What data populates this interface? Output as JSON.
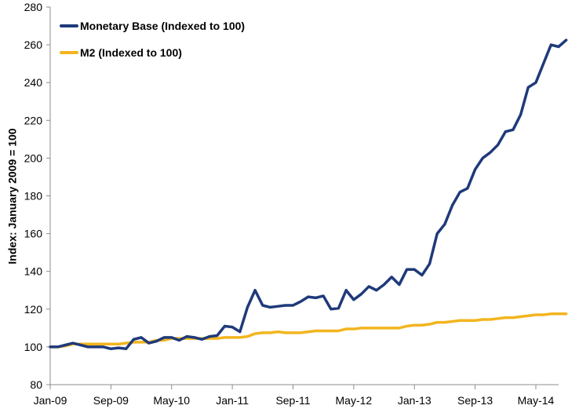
{
  "chart_data": {
    "type": "line",
    "title": "",
    "xlabel": "",
    "ylabel": "Index: January 2009 = 100",
    "ylim": [
      80,
      280
    ],
    "yticks": [
      80,
      100,
      120,
      140,
      160,
      180,
      200,
      220,
      240,
      260,
      280
    ],
    "grid": false,
    "legend": "top-left",
    "x_tick_labels": [
      "Jan-09",
      "Sep-09",
      "May-10",
      "Jan-11",
      "Sep-11",
      "May-12",
      "Jan-13",
      "Sep-13",
      "May-14"
    ],
    "x_tick_months": [
      "2009-01",
      "2009-09",
      "2010-05",
      "2011-01",
      "2011-09",
      "2012-05",
      "2013-01",
      "2013-09",
      "2014-05"
    ],
    "x_start": "2009-01",
    "x_end": "2014-08",
    "series": [
      {
        "name": "Monetary Base (Indexed to 100)",
        "color": "#1f3a7a",
        "start": "2009-01",
        "values": [
          100,
          100,
          101,
          102,
          101,
          100,
          100,
          100,
          99,
          99.5,
          99,
          104,
          105,
          102,
          103,
          105,
          105,
          103.5,
          105.5,
          105,
          104,
          105.5,
          106,
          111,
          110.5,
          108,
          121,
          130,
          122,
          121,
          121.5,
          122,
          122,
          124,
          126.5,
          126,
          127,
          120,
          120.5,
          130,
          125,
          128,
          132,
          130,
          133,
          137,
          133,
          141,
          141,
          138,
          144,
          160,
          165,
          175,
          182,
          184,
          194,
          200,
          203,
          207,
          214,
          215,
          223,
          237.5,
          240,
          250,
          260,
          259,
          262.5
        ]
      },
      {
        "name": "M2 (Indexed to 100)",
        "color": "#f2b51e",
        "start": "2009-01",
        "values": [
          100,
          100,
          100.5,
          101.5,
          101.5,
          101.5,
          101.5,
          101.5,
          101.5,
          101.5,
          102,
          102.5,
          102.5,
          102.5,
          103.5,
          103.5,
          104.5,
          104.5,
          104.5,
          104.5,
          104.5,
          104.5,
          104.5,
          105,
          105,
          105,
          105.5,
          107,
          107.5,
          107.5,
          108,
          107.5,
          107.5,
          107.5,
          108,
          108.5,
          108.5,
          108.5,
          108.5,
          109.5,
          109.5,
          110,
          110,
          110,
          110,
          110,
          110,
          111,
          111.5,
          111.5,
          112,
          113,
          113,
          113.5,
          114,
          114,
          114,
          114.5,
          114.5,
          115,
          115.5,
          115.5,
          116,
          116.5,
          117,
          117,
          117.5,
          117.5,
          117.5
        ]
      }
    ]
  }
}
